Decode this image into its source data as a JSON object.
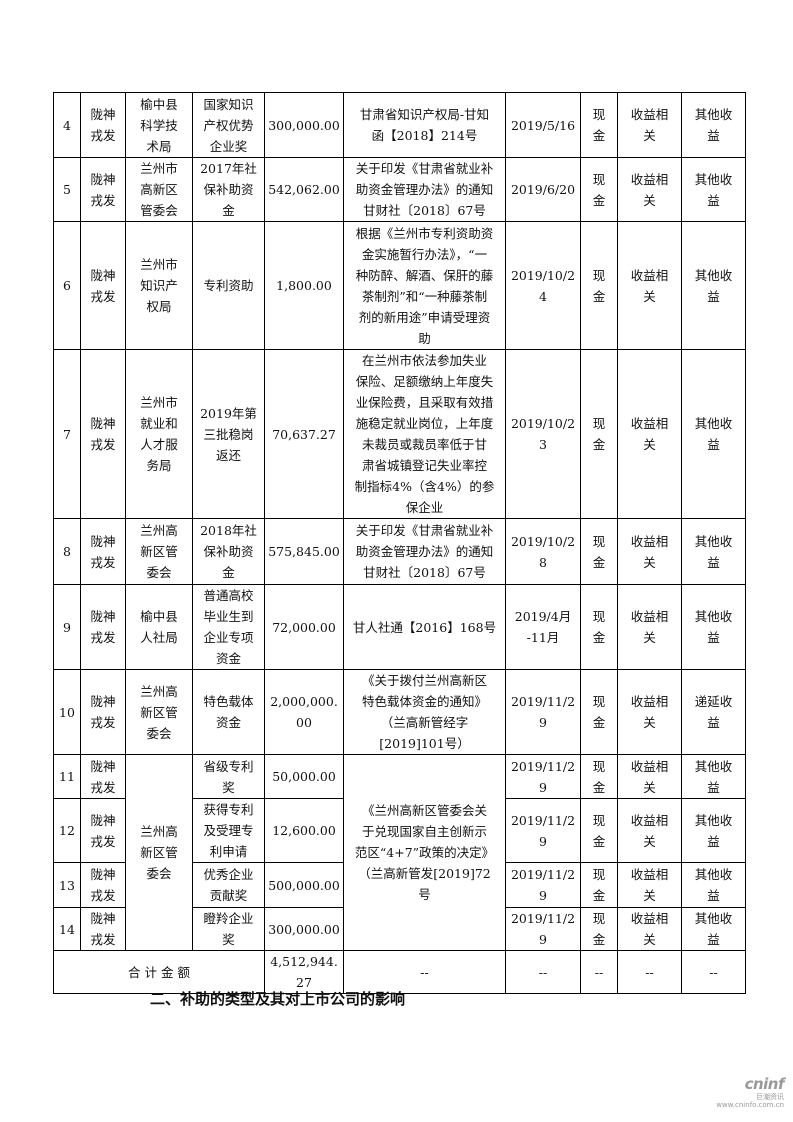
{
  "rows": [
    {
      "no": "4",
      "company": "陇神\n戎发",
      "dept": "榆中县\n科学技\n术局",
      "item": "国家知识\n产权优势\n企业奖",
      "amount": "300,000.00",
      "basis": "甘肃省知识产权局-甘知\n函【2018】214号",
      "date": "2019/5/16",
      "form": "现\n金",
      "type": "收益相\n关",
      "account": "其他收\n益"
    },
    {
      "no": "5",
      "company": "陇神\n戎发",
      "dept": "兰州市\n高新区\n管委会",
      "item": "2017年社\n保补助资\n金",
      "amount": "542,062.00",
      "basis": "关于印发《甘肃省就业补\n助资金管理办法》的通知\n甘财社〔2018〕67号",
      "date": "2019/6/20",
      "form": "现\n金",
      "type": "收益相\n关",
      "account": "其他收\n益"
    },
    {
      "no": "6",
      "company": "陇神\n戎发",
      "dept": "兰州市\n知识产\n权局",
      "item": "专利资助",
      "amount": "1,800.00",
      "basis": "根据《兰州市专利资助资\n金实施暂行办法》，“一\n种防醉、解酒、保肝的藤\n茶制剂”和“一种藤茶制\n剂的新用途”申请受理资\n助",
      "date": "2019/10/2\n4",
      "form": "现\n金",
      "type": "收益相\n关",
      "account": "其他收\n益"
    },
    {
      "no": "7",
      "company": "陇神\n戎发",
      "dept": "兰州市\n就业和\n人才服\n务局",
      "item": "2019年第\n三批稳岗\n返还",
      "amount": "70,637.27",
      "basis": "在兰州市依法参加失业\n保险、足额缴纳上年度失\n业保险费，且采取有效措\n施稳定就业岗位，上年度\n未裁员或裁员率低于甘\n肃省城镇登记失业率控\n制指标4%（含4%）的参\n保企业",
      "date": "2019/10/2\n3",
      "form": "现\n金",
      "type": "收益相\n关",
      "account": "其他收\n益"
    },
    {
      "no": "8",
      "company": "陇神\n戎发",
      "dept": "兰州高\n新区管\n委会",
      "item": "2018年社\n保补助资\n金",
      "amount": "575,845.00",
      "basis": "关于印发《甘肃省就业补\n助资金管理办法》的通知\n甘财社〔2018〕67号",
      "date": "2019/10/2\n8",
      "form": "现\n金",
      "type": "收益相\n关",
      "account": "其他收\n益"
    },
    {
      "no": "9",
      "company": "陇神\n戎发",
      "dept": "榆中县\n人社局",
      "item": "普通高校\n毕业生到\n企业专项\n资金",
      "amount": "72,000.00",
      "basis": "甘人社通【2016】168号",
      "date": "2019/4月\n-11月",
      "form": "现\n金",
      "type": "收益相\n关",
      "account": "其他收\n益"
    },
    {
      "no": "10",
      "company": "陇神\n戎发",
      "dept": "兰州高\n新区管\n委会",
      "item": "特色载体\n资金",
      "amount": "2,000,000.\n00",
      "basis": "《关于拨付兰州高新区\n特色载体资金的通知》\n（兰高新管经字\n[2019]101号）",
      "date": "2019/11/2\n9",
      "form": "现\n金",
      "type": "收益相\n关",
      "account": "递延收\n益"
    },
    {
      "no": "11",
      "company": "陇神\n戎发",
      "dept": "兰州高\n新区管\n委会",
      "item": "省级专利\n奖",
      "amount": "50,000.00",
      "basis": "《兰州高新区管委会关\n于兑现国家自主创新示\n范区“4+7”政策的决定》\n（兰高新管发[2019]72\n号",
      "date": "2019/11/2\n9",
      "form": "现\n金",
      "type": "收益相\n关",
      "account": "其他收\n益"
    },
    {
      "no": "12",
      "company": "陇神\n戎发",
      "item": "获得专利\n及受理专\n利申请",
      "amount": "12,600.00",
      "date": "2019/11/2\n9",
      "form": "现\n金",
      "type": "收益相\n关",
      "account": "其他收\n益"
    },
    {
      "no": "13",
      "company": "陇神\n戎发",
      "item": "优秀企业\n贡献奖",
      "amount": "500,000.00",
      "date": "2019/11/2\n9",
      "form": "现\n金",
      "type": "收益相\n关",
      "account": "其他收\n益"
    },
    {
      "no": "14",
      "company": "陇神\n戎发",
      "item": "瞪羚企业\n奖",
      "amount": "300,000.00",
      "date": "2019/11/2\n9",
      "form": "现\n金",
      "type": "收益相\n关",
      "account": "其他收\n益"
    }
  ],
  "total": {
    "label": "合 计 金 额",
    "amount": "4,512,944.\n27",
    "basis": "--",
    "date": "--",
    "form": "--",
    "type": "--",
    "account": "--"
  },
  "section_heading": "二、补助的类型及其对上市公司的影响",
  "logo": {
    "word": "cninf",
    "sub": "巨潮资讯\nwww.cninfo.com.cn"
  }
}
